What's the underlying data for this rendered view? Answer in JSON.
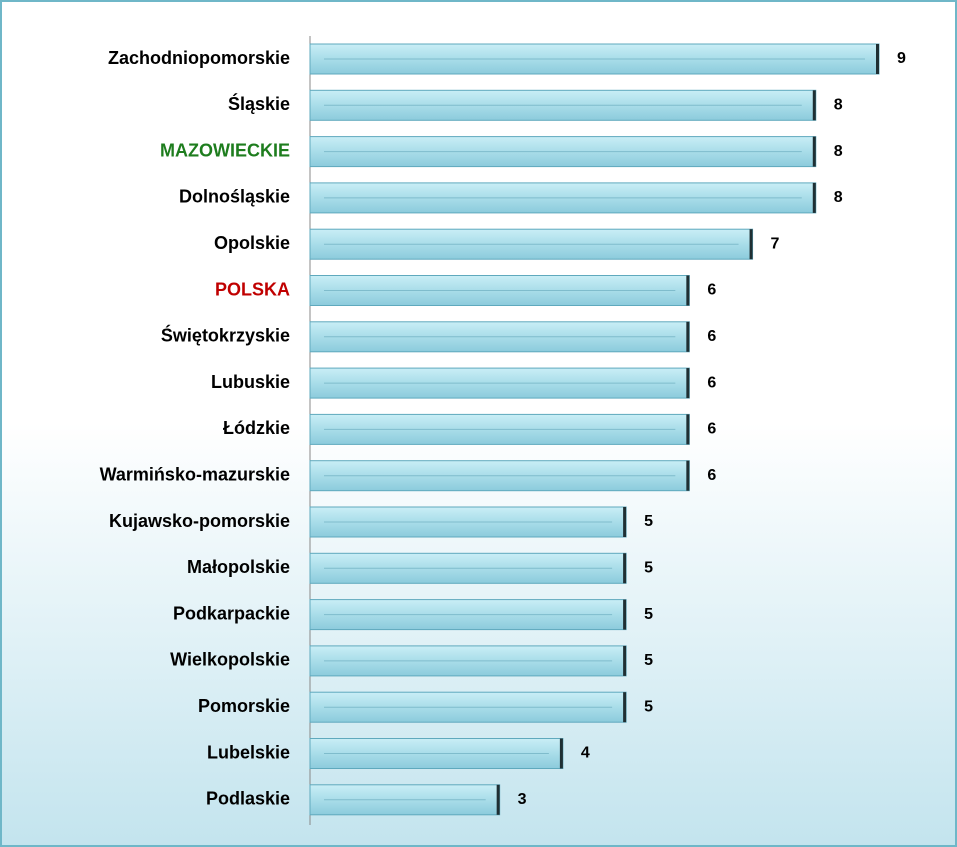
{
  "chart_data": {
    "type": "bar",
    "orientation": "horizontal",
    "categories": [
      "Zachodniopomorskie",
      "Śląskie",
      "MAZOWIECKIE",
      "Dolnośląskie",
      "Opolskie",
      "POLSKA",
      "Świętokrzyskie",
      "Lubuskie",
      "Łódzkie",
      "Warmińsko-mazurskie",
      "Kujawsko-pomorskie",
      "Małopolskie",
      "Podkarpackie",
      "Wielkopolskie",
      "Pomorskie",
      "Lubelskie",
      "Podlaskie"
    ],
    "values": [
      9,
      8,
      8,
      8,
      7,
      6,
      6,
      6,
      6,
      6,
      5,
      5,
      5,
      5,
      5,
      4,
      3
    ],
    "label_colors": [
      "#000000",
      "#000000",
      "#1e7d1e",
      "#000000",
      "#000000",
      "#c00000",
      "#000000",
      "#000000",
      "#000000",
      "#000000",
      "#000000",
      "#000000",
      "#000000",
      "#000000",
      "#000000",
      "#000000",
      "#000000"
    ],
    "color": "#a9dde9"
  }
}
